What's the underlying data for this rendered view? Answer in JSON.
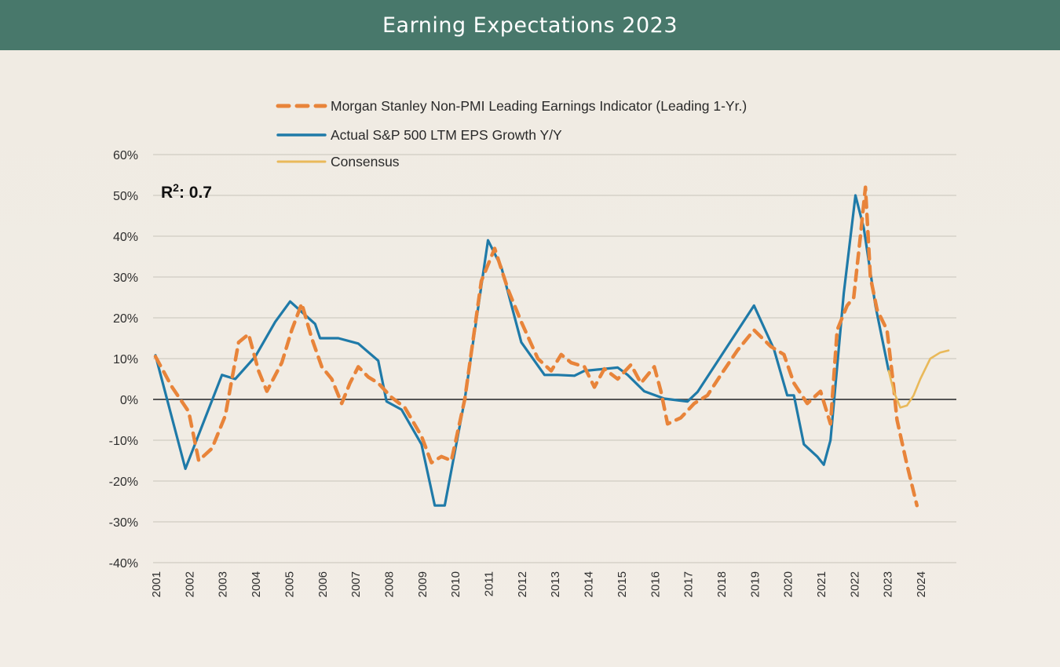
{
  "header": {
    "title": "Earning Expectations 2023"
  },
  "colors": {
    "header_bg": "#48786b",
    "leading_indicator": "#e8843a",
    "actual_eps": "#1f7aa8",
    "consensus": "#e9b95a",
    "zero_line": "#555555",
    "grid": "#d6d1c8"
  },
  "annotation": {
    "label": "R",
    "superscript": "2",
    "value": ": 0.7"
  },
  "chart_data": {
    "type": "line",
    "title": "Earning Expectations 2023",
    "xlabel": "",
    "ylabel": "",
    "xlim": [
      2001,
      2024.9
    ],
    "ylim": [
      -40,
      60
    ],
    "grid": true,
    "legend_position": "top-center",
    "y_ticks": [
      60,
      50,
      40,
      30,
      20,
      10,
      0,
      -10,
      -20,
      -30,
      -40
    ],
    "y_tick_labels": [
      "60%",
      "50%",
      "40%",
      "30%",
      "20%",
      "10%",
      "0%",
      "-10%",
      "-20%",
      "-30%",
      "-40%"
    ],
    "x_ticks": [
      "2001",
      "2002",
      "2003",
      "2004",
      "2005",
      "2006",
      "2007",
      "2008",
      "2009",
      "2010",
      "2011",
      "2012",
      "2013",
      "2014",
      "2015",
      "2016",
      "2017",
      "2018",
      "2019",
      "2020",
      "2021",
      "2022",
      "2023",
      "2024"
    ],
    "annotations": [
      "R²: 0.7"
    ],
    "series": [
      {
        "name": "Morgan Stanley Non-PMI Leading Earnings Indicator (Leading 1-Yr.)",
        "style": "dashed",
        "x": [
          2001.0,
          2001.5,
          2002.0,
          2002.3,
          2002.7,
          2003.1,
          2003.5,
          2003.8,
          2004.1,
          2004.35,
          2004.8,
          2005.1,
          2005.4,
          2005.7,
          2006.0,
          2006.3,
          2006.6,
          2006.85,
          2007.1,
          2007.4,
          2007.7,
          2008.1,
          2008.5,
          2009.0,
          2009.3,
          2009.6,
          2009.9,
          2010.3,
          2010.8,
          2011.2,
          2011.6,
          2012.0,
          2012.5,
          2012.9,
          2013.2,
          2013.5,
          2013.9,
          2014.2,
          2014.5,
          2014.9,
          2015.3,
          2015.6,
          2016.0,
          2016.2,
          2016.4,
          2016.8,
          2017.2,
          2017.6,
          2018.0,
          2018.5,
          2019.0,
          2019.5,
          2019.9,
          2020.2,
          2020.6,
          2021.0,
          2021.3,
          2021.5,
          2021.8,
          2022.0,
          2022.2,
          2022.35,
          2022.5,
          2022.7,
          2023.0,
          2023.2,
          2023.3,
          2023.6,
          2023.9
        ],
        "values": [
          10.5,
          3,
          -3,
          -15,
          -12,
          -4,
          14,
          16,
          7,
          2,
          9,
          17,
          23.5,
          15,
          8,
          5,
          -1,
          4,
          8,
          5.5,
          4,
          0.5,
          -2,
          -9,
          -15.5,
          -14,
          -15,
          0,
          29,
          37,
          27,
          19,
          10,
          7,
          11,
          9,
          8,
          3,
          7.5,
          5,
          8.5,
          4,
          8,
          2,
          -6,
          -4.5,
          -1,
          1,
          6,
          12,
          17,
          13,
          11,
          4,
          -1,
          2,
          -6,
          17,
          23,
          25,
          40,
          52,
          30,
          22,
          17,
          3,
          -5,
          -16,
          -26
        ]
      },
      {
        "name": "Actual S&P 500 LTM EPS Growth Y/Y",
        "style": "solid",
        "x": [
          2001.0,
          2001.9,
          2003.0,
          2003.4,
          2004.0,
          2004.6,
          2005.05,
          2005.8,
          2005.95,
          2006.5,
          2007.1,
          2007.7,
          2007.95,
          2008.4,
          2009.0,
          2009.4,
          2009.7,
          2010.3,
          2011.0,
          2011.4,
          2012.0,
          2012.7,
          2013.1,
          2013.6,
          2013.9,
          2014.9,
          2015.2,
          2015.7,
          2016.3,
          2017.0,
          2017.3,
          2019.0,
          2019.6,
          2020.0,
          2020.2,
          2020.5,
          2020.9,
          2021.1,
          2021.3,
          2021.7,
          2022.05,
          2022.3,
          2022.65,
          2023.05
        ],
        "values": [
          10.8,
          -17,
          6,
          5,
          10.5,
          19,
          24,
          18.5,
          15,
          15,
          13.7,
          9.5,
          -0.5,
          -2.5,
          -11,
          -26,
          -26,
          0,
          39,
          32.5,
          14,
          6,
          6,
          5.8,
          7,
          7.8,
          6,
          2,
          0.2,
          -0.5,
          1.8,
          23,
          12.3,
          1,
          1,
          -11,
          -14,
          -16,
          -10,
          26,
          50,
          42,
          23,
          7
        ]
      },
      {
        "name": "Consensus",
        "style": "solid-thin",
        "x": [
          2023.05,
          2023.2,
          2023.4,
          2023.6,
          2023.8,
          2024.0,
          2024.3,
          2024.6,
          2024.85
        ],
        "values": [
          7,
          2,
          -2,
          -1.5,
          1,
          5,
          10,
          11.5,
          12
        ]
      }
    ]
  }
}
